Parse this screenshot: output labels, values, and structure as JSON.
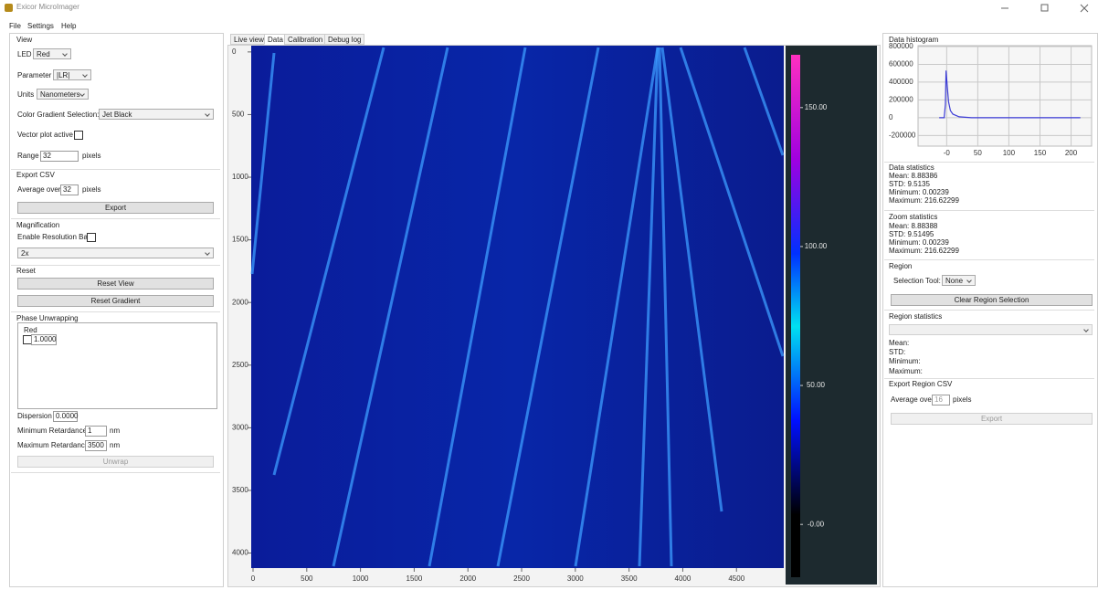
{
  "window": {
    "title": "Exicor MicroImager"
  },
  "menu": [
    "File",
    "Settings",
    "Help"
  ],
  "left_panel": {
    "view": {
      "title": "View",
      "led_label": "LED",
      "led_value": "Red",
      "parameter_label": "Parameter",
      "parameter_value": "|LR|",
      "units_label": "Units",
      "units_value": "Nanometers",
      "gradient_label": "Color Gradient Selection:",
      "gradient_value": "Jet Black",
      "vector_label": "Vector plot active",
      "range_label": "Range",
      "range_value": "32",
      "range_unit": "pixels"
    },
    "export_csv": {
      "title": "Export CSV",
      "average_label": "Average over",
      "average_value": "32",
      "average_unit": "pixels",
      "button": "Export"
    },
    "magnification": {
      "title": "Magnification",
      "resolution_label": "Enable Resolution Bar",
      "value": "2x"
    },
    "reset": {
      "title": "Reset",
      "view_button": "Reset View",
      "gradient_button": "Reset Gradient"
    },
    "phase_unwrapping": {
      "title": "Phase Unwrapping",
      "channel": "Red",
      "channel_value": "1.0000",
      "dispersion_label": "Dispersion",
      "dispersion_value": "0.0000",
      "min_label": "Minimum Retardance",
      "min_value": "1",
      "min_unit": "nm",
      "max_label": "Maximum Retardance",
      "max_value": "3500",
      "max_unit": "nm",
      "button": "Unwrap"
    }
  },
  "tabs": [
    "Live view",
    "Data",
    "Calibration",
    "Debug log"
  ],
  "image_view": {
    "xlim": [
      -17,
      4940
    ],
    "ylim": [
      -50,
      4120
    ],
    "xticks": [
      0,
      500,
      1000,
      1500,
      2000,
      2500,
      3000,
      3500,
      4000,
      4500
    ],
    "yticks": [
      0,
      500,
      1000,
      1500,
      2000,
      2500,
      3000,
      3500,
      4000
    ],
    "colorbar": {
      "lim": [
        -19,
        169
      ],
      "ticks": [
        {
          "value": 150,
          "label": "150.00"
        },
        {
          "value": 100,
          "label": "100.00"
        },
        {
          "value": 50,
          "label": "50.00"
        },
        {
          "value": 0,
          "label": "-0.00"
        }
      ]
    }
  },
  "histogram": {
    "type": "line",
    "title": "Data histogram",
    "color": "#3b3bd6",
    "xlim": [
      -46,
      233
    ],
    "ylim": [
      -320000,
      810000
    ],
    "xticks": [
      {
        "value": 0,
        "label": "-0"
      },
      50,
      100,
      150,
      200
    ],
    "yticks": [
      800000,
      600000,
      400000,
      200000,
      0,
      -200000
    ],
    "x": [
      -12,
      -4,
      -2,
      -1,
      1,
      3,
      6,
      10,
      20,
      40,
      215
    ],
    "values": [
      0,
      0,
      150000,
      530000,
      350000,
      180000,
      80000,
      40000,
      10000,
      0,
      0
    ]
  },
  "data_statistics": {
    "title": "Data statistics",
    "lines": [
      "Mean: 8.88386",
      "STD: 9.5135",
      "Minimum: 0.00239",
      "Maximum: 216.62299"
    ]
  },
  "zoom_statistics": {
    "title": "Zoom statistics",
    "lines": [
      "Mean: 8.88388",
      "STD: 9.51495",
      "Minimum: 0.00239",
      "Maximum: 216.62299"
    ]
  },
  "region": {
    "title": "Region",
    "tool_label": "Selection Tool:",
    "tool_value": "None",
    "button": "Clear Region Selection"
  },
  "region_statistics": {
    "title": "Region statistics",
    "lines": [
      "Mean:",
      "STD:",
      "Minimum:",
      "Maximum:"
    ]
  },
  "export_region_csv": {
    "title": "Export Region CSV",
    "average_label": "Average over",
    "average_value": "16",
    "average_unit": "pixels",
    "button": "Export"
  }
}
